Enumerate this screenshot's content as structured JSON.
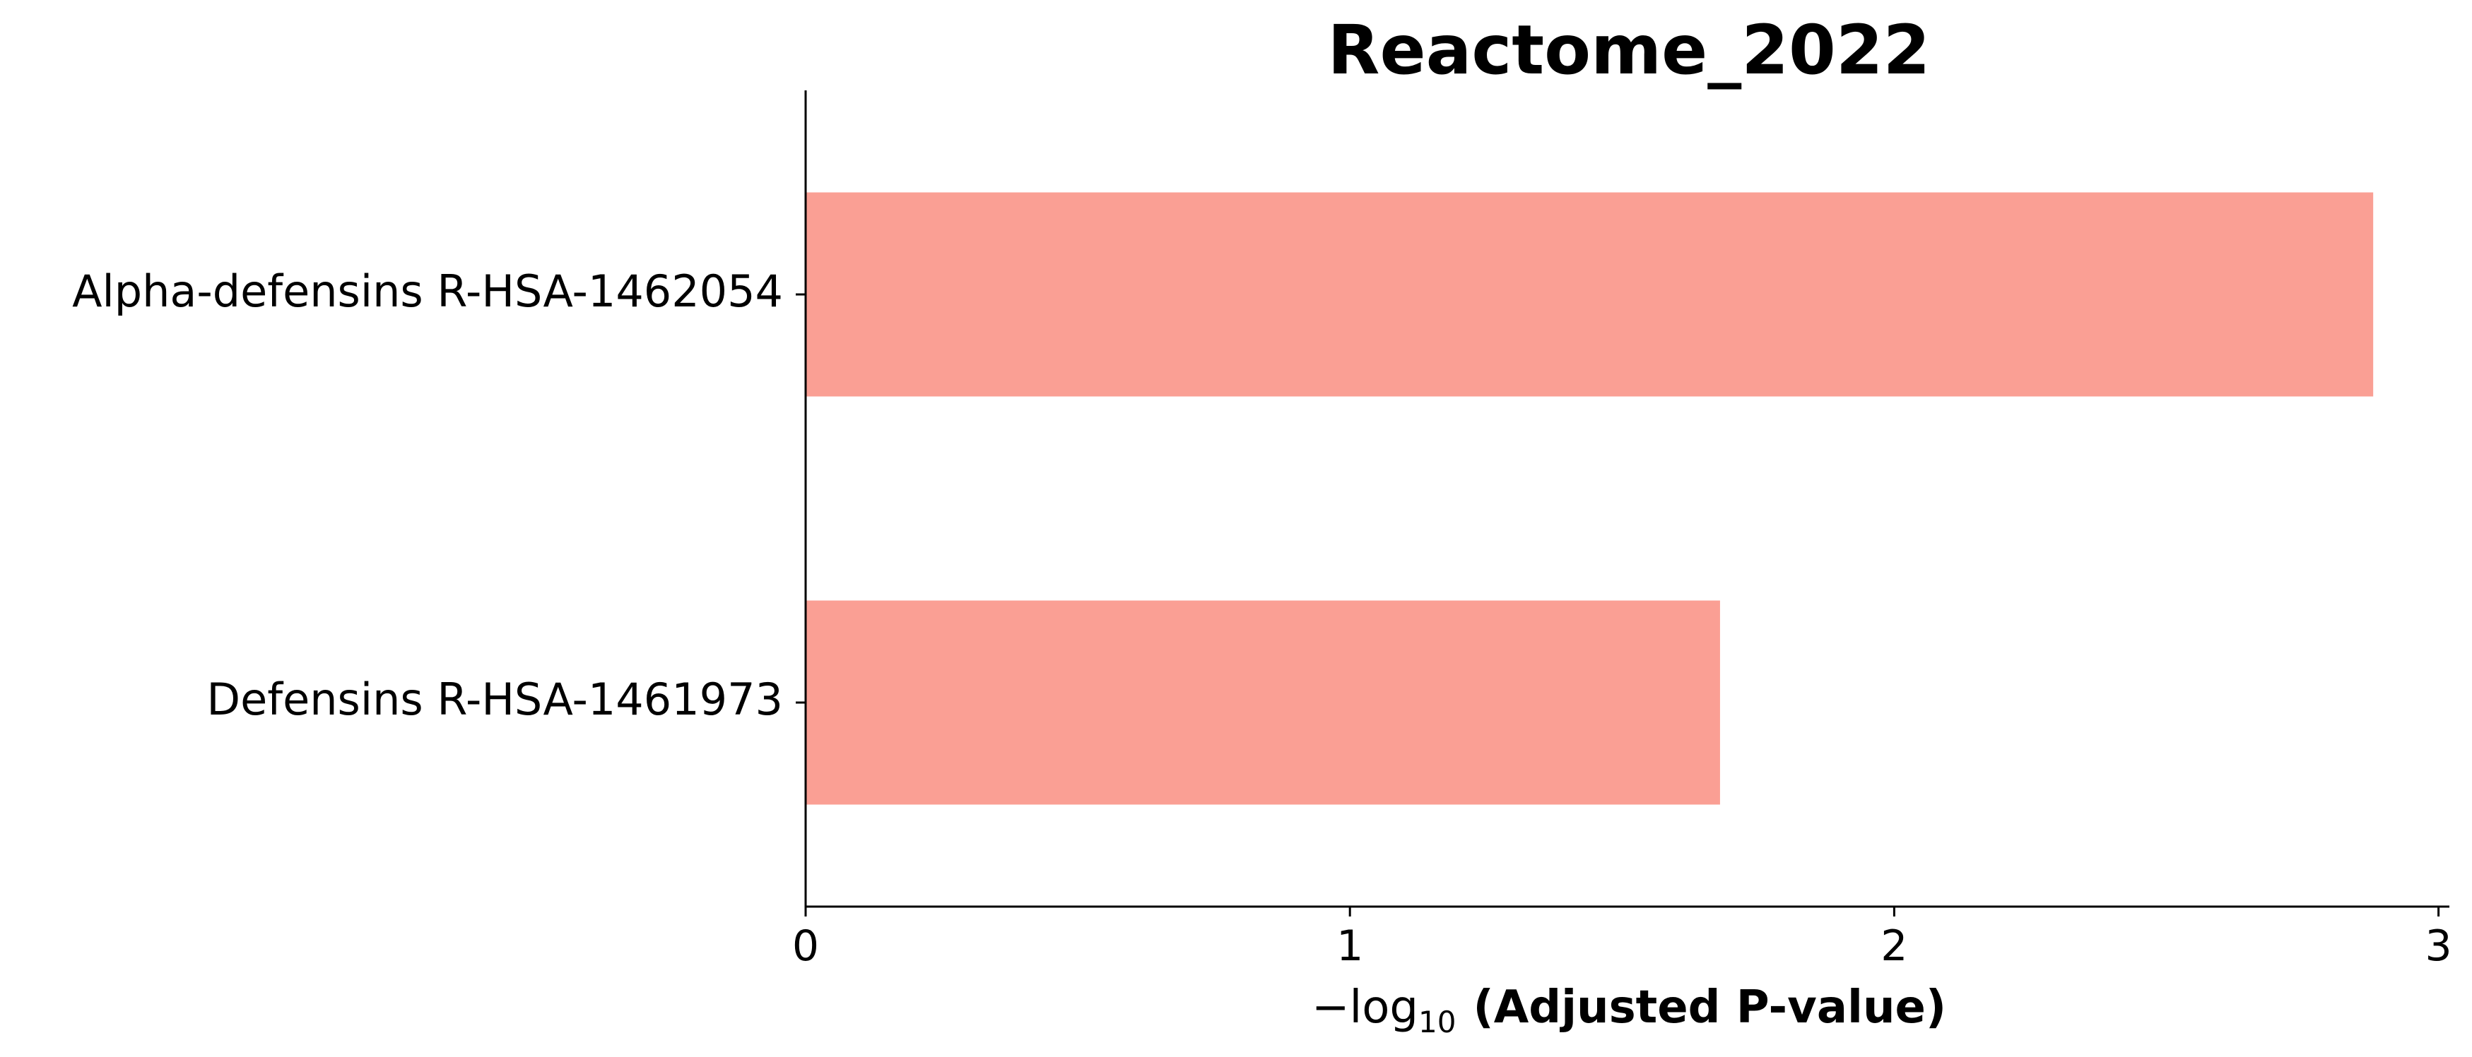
{
  "chart_data": {
    "type": "bar",
    "orientation": "horizontal",
    "title": "Reactome_2022",
    "categories": [
      "Alpha-defensins R-HSA-1462054",
      "Defensins R-HSA-1461973"
    ],
    "values": [
      2.88,
      1.68
    ],
    "xlabel": {
      "prefix": "−log",
      "subscript": "10",
      "main": "(Adjusted P-value)"
    },
    "ylabel": "",
    "xlim": [
      0,
      3.02
    ],
    "xticks": [
      0,
      1,
      2,
      3
    ],
    "xtick_labels": [
      "0",
      "1",
      "2",
      "3"
    ],
    "bar_color": "#fa9f94",
    "grid": false,
    "legend": "none"
  }
}
